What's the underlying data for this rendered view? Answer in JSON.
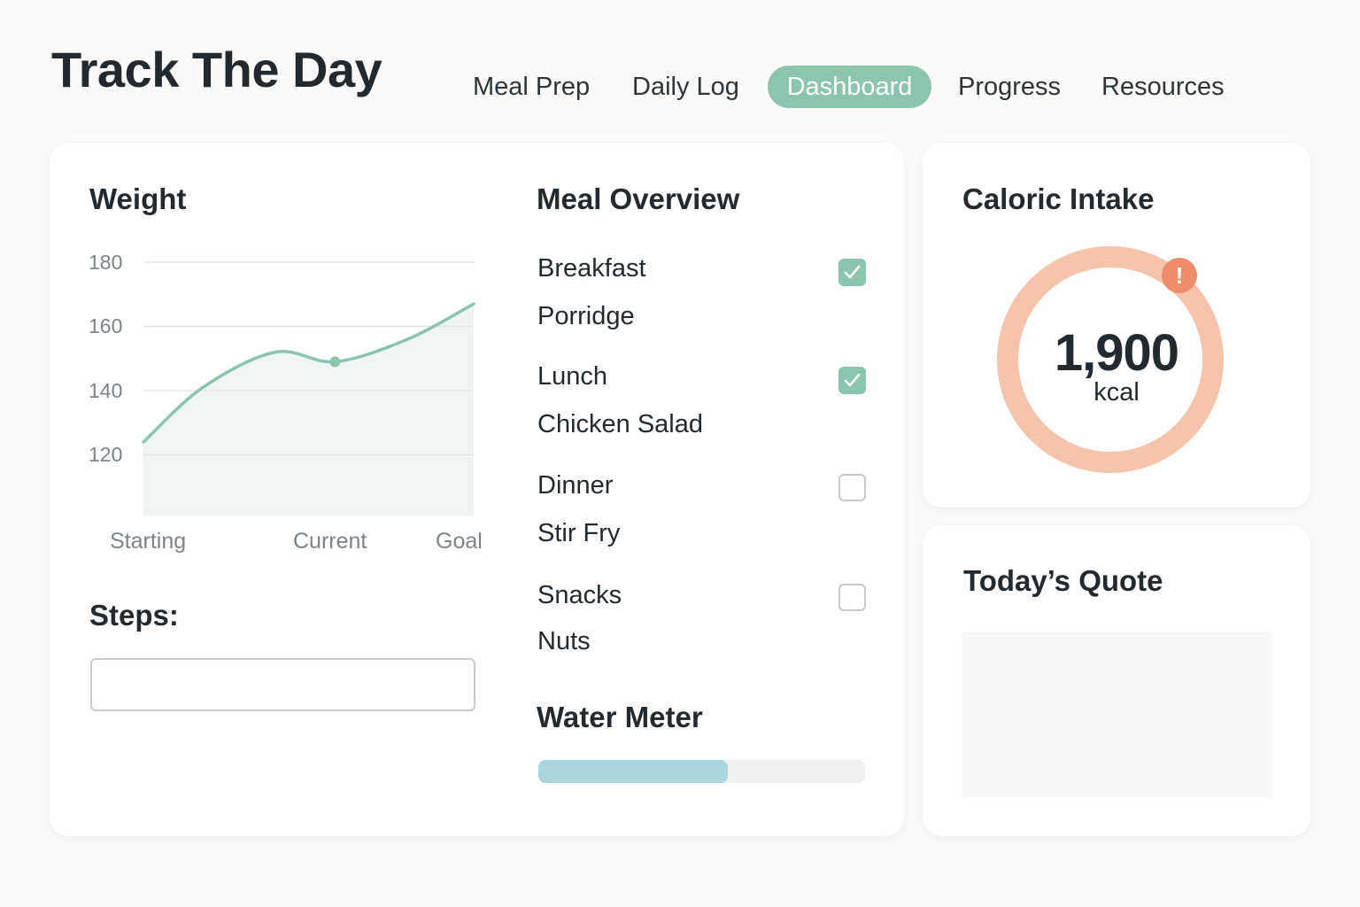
{
  "app": {
    "title": "Track The Day"
  },
  "nav": {
    "items": [
      {
        "label": "Meal Prep"
      },
      {
        "label": "Daily Log"
      },
      {
        "label": "Dashboard",
        "active": true
      },
      {
        "label": "Progress"
      },
      {
        "label": "Resources"
      }
    ]
  },
  "weight": {
    "title": "Weight",
    "chart_data": {
      "type": "area",
      "title": "Weight",
      "y_ticks": [
        180,
        160,
        140,
        120
      ],
      "ylim": [
        101,
        180
      ],
      "x_labels": [
        "Starting",
        "Current",
        "Goal"
      ],
      "x": [
        0,
        0.18,
        0.4,
        0.58,
        0.8,
        1.0
      ],
      "y": [
        124,
        141,
        152,
        149,
        156,
        167
      ],
      "marker": {
        "label": "Current",
        "value": 149
      },
      "grid": true,
      "color": "#8cc5ad",
      "fill_color": "#eef5f2"
    }
  },
  "steps": {
    "label": "Steps:",
    "value": ""
  },
  "meals": {
    "title": "Meal Overview",
    "items": [
      {
        "name": "Breakfast",
        "food": "Porridge",
        "checked": true
      },
      {
        "name": "Lunch",
        "food": "Chicken Salad",
        "checked": true
      },
      {
        "name": "Dinner",
        "food": "Stir Fry",
        "checked": false
      },
      {
        "name": "Snacks",
        "food": "Nuts",
        "checked": false
      }
    ]
  },
  "water": {
    "title": "Water Meter",
    "fraction": 0.58,
    "color": "#a9d6dd"
  },
  "calories": {
    "title": "Caloric Intake",
    "value": "1,900",
    "unit": "kcal",
    "alert_icon": "exclamation-icon",
    "ring_color": "#f6c4ab",
    "alert_color": "#ef8c6c"
  },
  "quote": {
    "title": "Today’s Quote",
    "text": ""
  },
  "colors": {
    "accent": "#8cc5ad",
    "background": "#fbfaf8",
    "text": "#222a30"
  }
}
